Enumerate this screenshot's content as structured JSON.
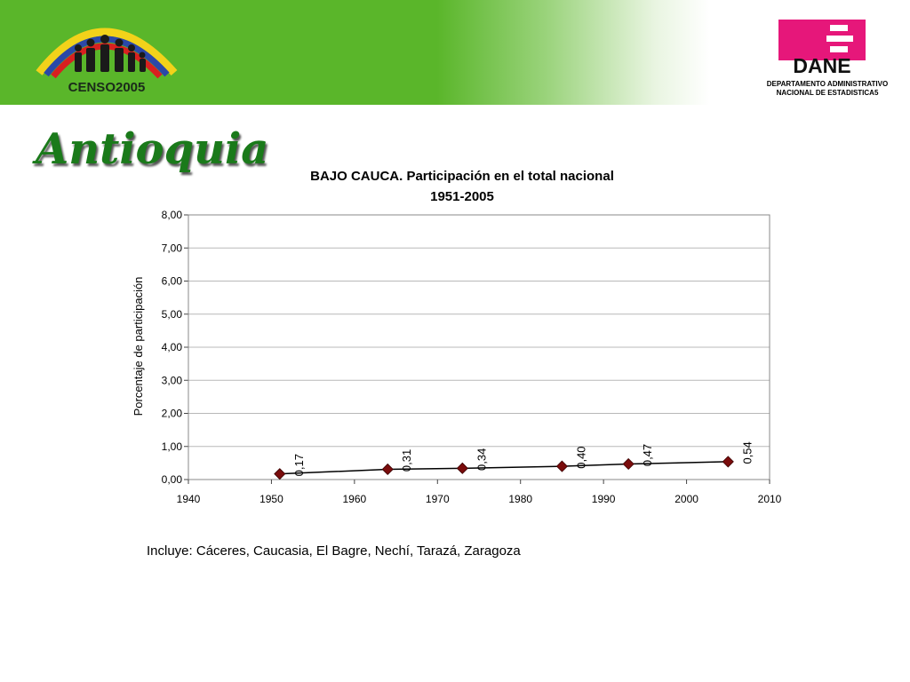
{
  "banner": {
    "censo_logo_text": "CENSO2005",
    "dane_logo_text": "DANE",
    "dane_subtitle_line1": "DEPARTAMENTO ADMINISTRATIVO",
    "dane_subtitle_line2": "NACIONAL DE ESTADISTICA5",
    "colors": {
      "green": "#5ab62a",
      "dane_pink": "#e6177a"
    }
  },
  "region_title": "Antioquia",
  "footnote": "Incluye: Cáceres, Caucasia, El Bagre, Nechí, Tarazá, Zaragoza",
  "chart_data": {
    "type": "line",
    "title": "BAJO CAUCA. Participación en el total nacional",
    "subtitle": "1951-2005",
    "xlabel": "",
    "ylabel": "Porcentaje de participación",
    "xlim": [
      1940,
      2010
    ],
    "ylim": [
      0,
      8
    ],
    "x_ticks": [
      "1940",
      "1950",
      "1960",
      "1970",
      "1980",
      "1990",
      "2000",
      "2010"
    ],
    "y_ticks": [
      "0,00",
      "1,00",
      "2,00",
      "3,00",
      "4,00",
      "5,00",
      "6,00",
      "7,00",
      "8,00"
    ],
    "grid": true,
    "series": [
      {
        "x": [
          1951,
          1964,
          1973,
          1985,
          1993,
          2005
        ],
        "values": [
          0.17,
          0.31,
          0.34,
          0.4,
          0.47,
          0.54
        ],
        "labels": [
          "0,17",
          "0,31",
          "0,34",
          "0,40",
          "0,47",
          "0,54"
        ],
        "color": "#7a0c0c"
      }
    ]
  }
}
